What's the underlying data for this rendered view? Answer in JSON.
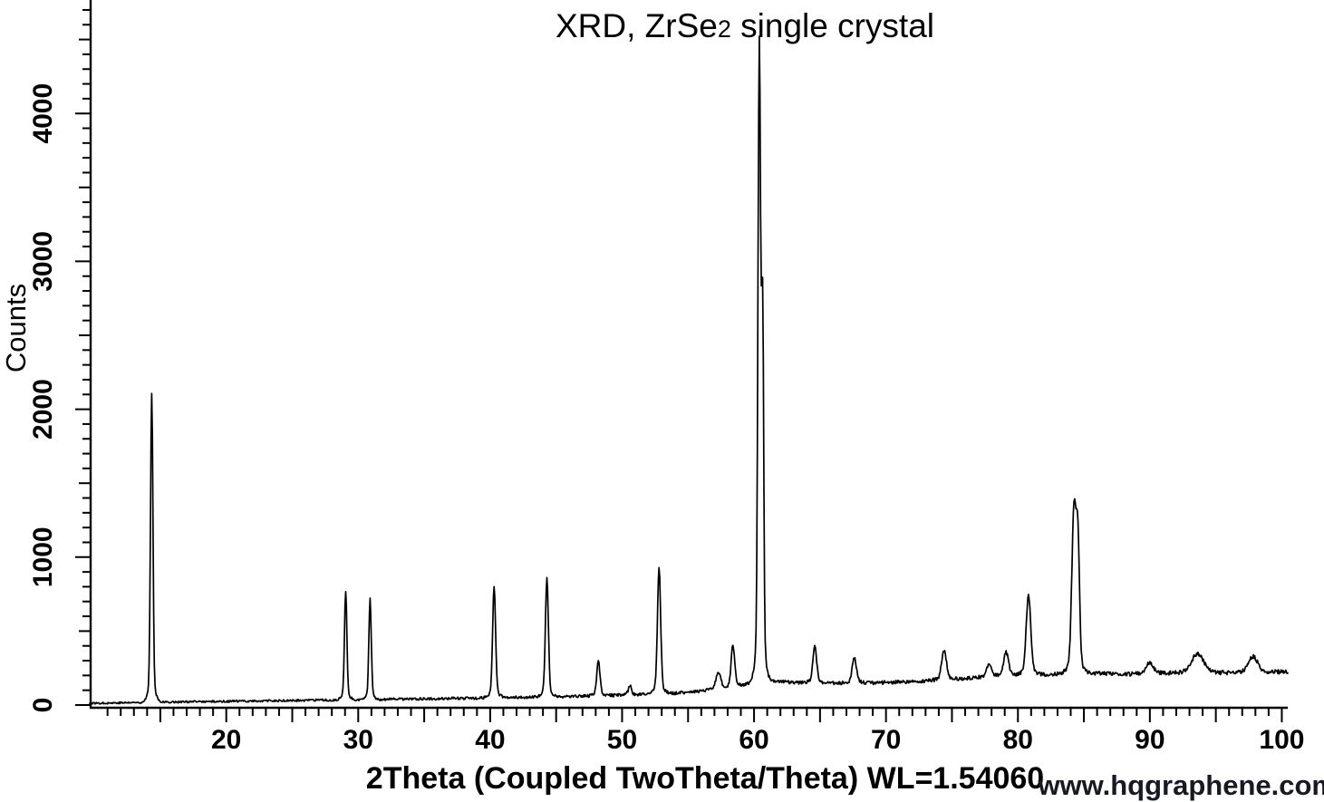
{
  "title": {
    "prefix": "XRD, ZrSe",
    "subscript": "2",
    "suffix": " single crystal"
  },
  "watermark": "www.hqgraphene.com",
  "chart_data": {
    "type": "line",
    "title": "XRD, ZrSe2 single crystal",
    "xlabel": "2Theta (Coupled TwoTheta/Theta) WL=1.54060",
    "ylabel": "Counts",
    "xlim": [
      9.65,
      100.45
    ],
    "ylim": [
      0,
      4767
    ],
    "x_tick_labels": [
      20,
      30,
      40,
      50,
      60,
      70,
      80,
      90,
      100
    ],
    "y_tick_labels": [
      0,
      1000,
      2000,
      3000,
      4000
    ],
    "x_minor_tick_step": 1,
    "x_major_tick_step": 5,
    "y_minor_tick_step": 100,
    "y_major_tick_step": 500,
    "grid": false,
    "legend_position": "none",
    "line_color": "#000000",
    "background_color": "#ffffff",
    "peaks": [
      {
        "two_theta": 14.35,
        "counts": 2100,
        "sigma": 0.09
      },
      {
        "two_theta": 29.05,
        "counts": 770,
        "sigma": 0.09
      },
      {
        "two_theta": 30.9,
        "counts": 715,
        "sigma": 0.09
      },
      {
        "two_theta": 40.3,
        "counts": 800,
        "sigma": 0.11
      },
      {
        "two_theta": 44.3,
        "counts": 865,
        "sigma": 0.11
      },
      {
        "two_theta": 48.2,
        "counts": 295,
        "sigma": 0.12
      },
      {
        "two_theta": 50.6,
        "counts": 130,
        "sigma": 0.12
      },
      {
        "two_theta": 52.8,
        "counts": 925,
        "sigma": 0.12
      },
      {
        "two_theta": 57.3,
        "counts": 215,
        "sigma": 0.18
      },
      {
        "two_theta": 58.4,
        "counts": 405,
        "sigma": 0.13
      },
      {
        "two_theta": 60.4,
        "counts": 4430,
        "sigma": 0.1
      },
      {
        "two_theta": 60.65,
        "counts": 2550,
        "sigma": 0.08
      },
      {
        "two_theta": 64.6,
        "counts": 395,
        "sigma": 0.14
      },
      {
        "two_theta": 67.6,
        "counts": 320,
        "sigma": 0.16
      },
      {
        "two_theta": 74.4,
        "counts": 370,
        "sigma": 0.18
      },
      {
        "two_theta": 77.8,
        "counts": 285,
        "sigma": 0.15
      },
      {
        "two_theta": 79.1,
        "counts": 355,
        "sigma": 0.18
      },
      {
        "two_theta": 80.8,
        "counts": 740,
        "sigma": 0.17
      },
      {
        "two_theta": 84.25,
        "counts": 1310,
        "sigma": 0.16
      },
      {
        "two_theta": 84.55,
        "counts": 1020,
        "sigma": 0.12
      },
      {
        "two_theta": 90.0,
        "counts": 290,
        "sigma": 0.25
      },
      {
        "two_theta": 93.6,
        "counts": 345,
        "sigma": 0.45
      },
      {
        "two_theta": 97.8,
        "counts": 330,
        "sigma": 0.35
      }
    ],
    "baseline": [
      [
        9.65,
        12
      ],
      [
        14,
        18
      ],
      [
        20,
        25
      ],
      [
        25,
        30
      ],
      [
        30,
        36
      ],
      [
        35,
        42
      ],
      [
        40,
        48
      ],
      [
        44,
        55
      ],
      [
        48,
        62
      ],
      [
        51,
        70
      ],
      [
        54,
        80
      ],
      [
        56,
        95
      ],
      [
        58,
        115
      ],
      [
        60,
        150
      ],
      [
        61.5,
        165
      ],
      [
        63,
        152
      ],
      [
        66,
        148
      ],
      [
        69,
        150
      ],
      [
        72,
        158
      ],
      [
        74,
        168
      ],
      [
        76,
        180
      ],
      [
        78,
        195
      ],
      [
        80,
        200
      ],
      [
        82,
        205
      ],
      [
        84,
        210
      ],
      [
        86,
        215
      ],
      [
        88,
        208
      ],
      [
        90,
        212
      ],
      [
        92,
        215
      ],
      [
        94,
        218
      ],
      [
        96,
        214
      ],
      [
        98,
        220
      ],
      [
        100.45,
        224
      ]
    ],
    "noise_amplitude": [
      6,
      15
    ]
  }
}
